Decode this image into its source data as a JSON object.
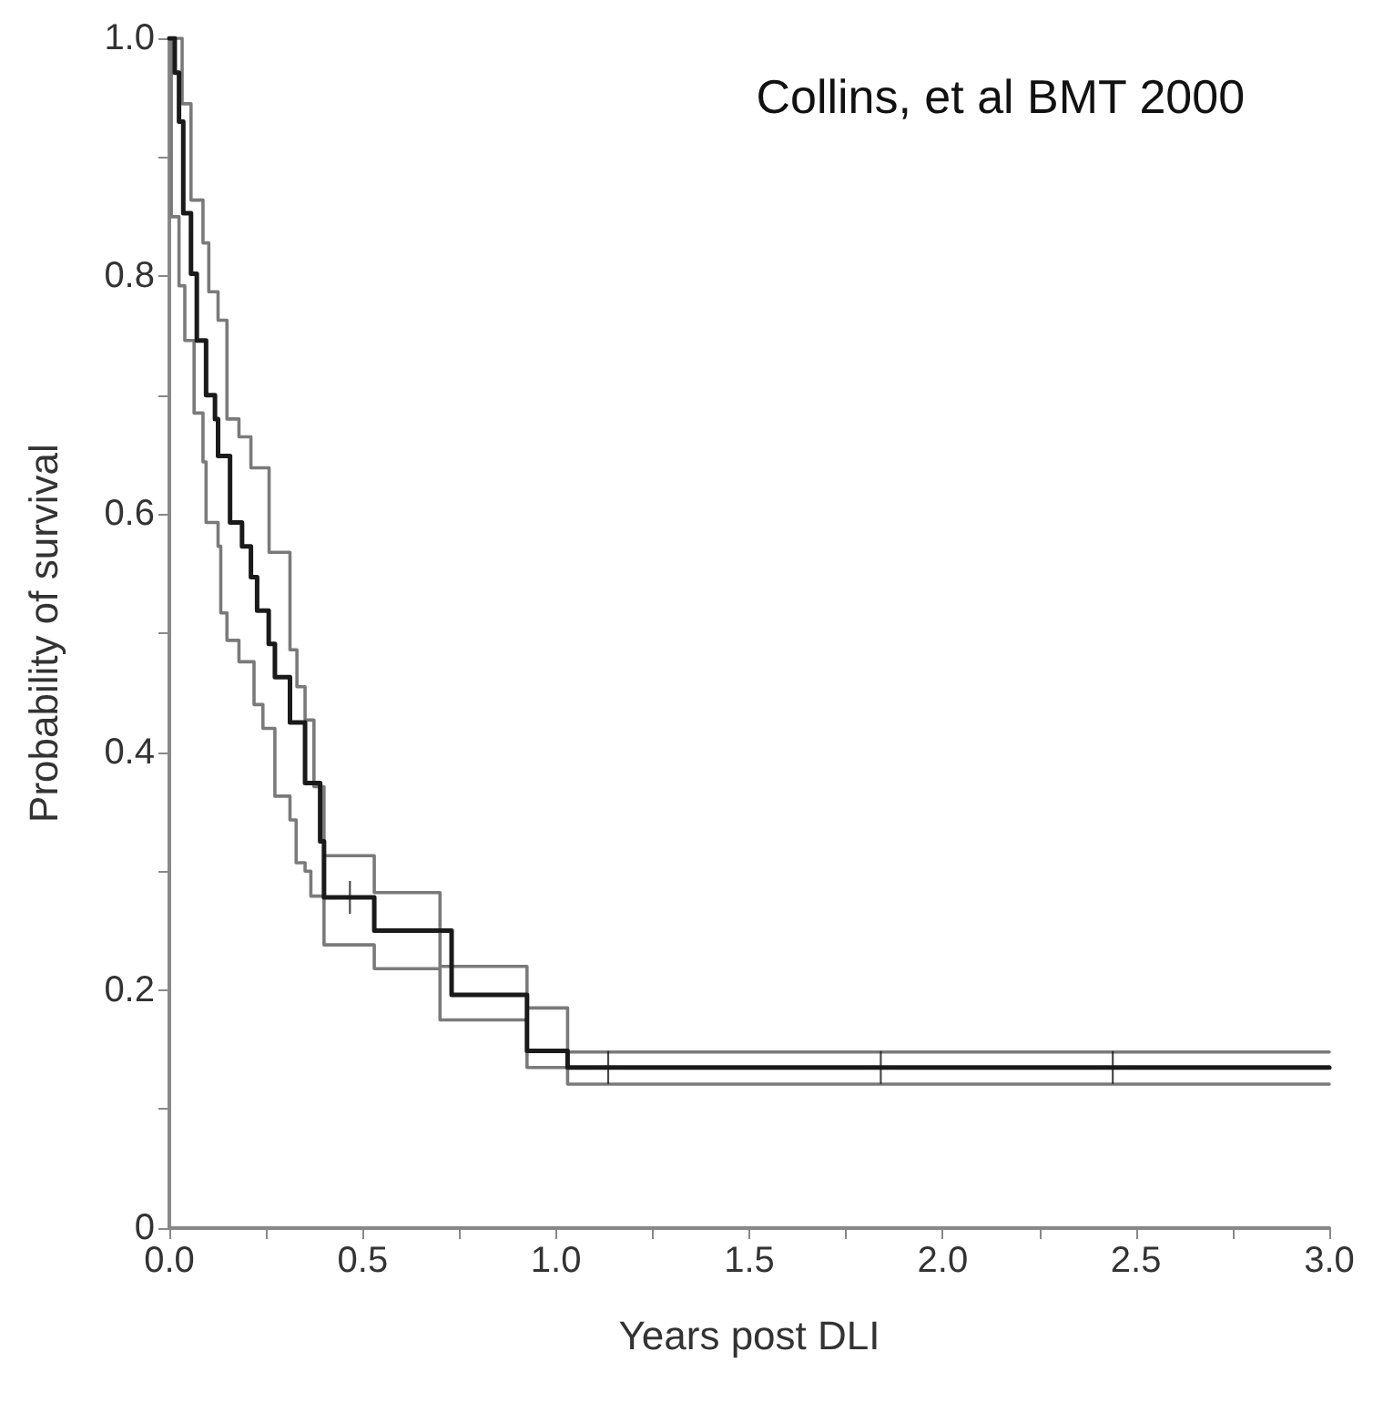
{
  "chart_data": {
    "type": "step",
    "xlabel": "Years post DLI",
    "ylabel": "Probability of survival",
    "annotations": [
      "Collins, et al BMT 2000"
    ],
    "xlim": [
      0,
      3
    ],
    "ylim": [
      0,
      1
    ],
    "xticks": [
      {
        "value": 0,
        "label": "0.0"
      },
      {
        "value": 0.25,
        "label": null
      },
      {
        "value": 0.5,
        "label": "0.5"
      },
      {
        "value": 0.75,
        "label": null
      },
      {
        "value": 1,
        "label": "1.0"
      },
      {
        "value": 1.25,
        "label": null
      },
      {
        "value": 1.5,
        "label": "1.5"
      },
      {
        "value": 1.75,
        "label": null
      },
      {
        "value": 2,
        "label": "2.0"
      },
      {
        "value": 2.25,
        "label": null
      },
      {
        "value": 2.5,
        "label": "2.5"
      },
      {
        "value": 2.75,
        "label": null
      },
      {
        "value": 3,
        "label": "3.0"
      }
    ],
    "yticks": [
      0,
      {
        "value": 0.1,
        "label": null
      },
      0.2,
      {
        "value": 0.3,
        "label": null
      },
      0.4,
      {
        "value": 0.5,
        "label": null
      },
      0.6,
      {
        "value": 0.7,
        "label": null
      },
      0.8,
      {
        "value": 0.9,
        "label": null
      },
      {
        "value": 1,
        "label": "1.0"
      }
    ],
    "grid": false,
    "marker": "none",
    "series": [
      {
        "color": "#7a7a7a",
        "x": [
          0,
          0.033,
          0.056,
          0.087,
          0.102,
          0.126,
          0.149,
          0.18,
          0.211,
          0.258,
          0.312,
          0.33,
          0.351,
          0.374,
          0.4,
          0.53,
          0.7,
          0.925,
          1.03,
          3.0
        ],
        "values": [
          1.0,
          0.945,
          0.864,
          0.828,
          0.787,
          0.763,
          0.68,
          0.665,
          0.639,
          0.568,
          0.486,
          0.455,
          0.427,
          0.371,
          0.313,
          0.282,
          0.22,
          0.185,
          0.148,
          0.148
        ]
      },
      {
        "color": "#7a7a7a",
        "x": [
          0,
          0.005,
          0.025,
          0.04,
          0.064,
          0.087,
          0.095,
          0.126,
          0.133,
          0.149,
          0.18,
          0.219,
          0.242,
          0.273,
          0.312,
          0.328,
          0.351,
          0.366,
          0.4,
          0.53,
          0.7,
          0.925,
          1.03,
          3.0
        ],
        "values": [
          1.0,
          0.85,
          0.792,
          0.746,
          0.685,
          0.644,
          0.593,
          0.573,
          0.517,
          0.494,
          0.476,
          0.44,
          0.42,
          0.363,
          0.343,
          0.307,
          0.3,
          0.279,
          0.238,
          0.218,
          0.175,
          0.135,
          0.121,
          0.121
        ]
      },
      {
        "color": "#1a1a1a",
        "x": [
          0,
          0.014,
          0.025,
          0.036,
          0.056,
          0.071,
          0.095,
          0.118,
          0.126,
          0.157,
          0.188,
          0.211,
          0.227,
          0.257,
          0.273,
          0.312,
          0.351,
          0.39,
          0.4,
          0.53,
          0.73,
          0.925,
          1.03,
          3.0
        ],
        "values": [
          1.0,
          0.971,
          0.93,
          0.853,
          0.802,
          0.746,
          0.7,
          0.68,
          0.649,
          0.593,
          0.573,
          0.547,
          0.519,
          0.491,
          0.463,
          0.425,
          0.374,
          0.325,
          0.278,
          0.25,
          0.196,
          0.149,
          0.135,
          0.135
        ]
      },
      {
        "type": "scatter",
        "marker": "cross",
        "color": "#1a1a1a",
        "x": [
          0.467,
          1.135,
          1.84,
          2.44
        ],
        "values": [
          0.278,
          0.135,
          0.135,
          0.135
        ]
      }
    ]
  }
}
